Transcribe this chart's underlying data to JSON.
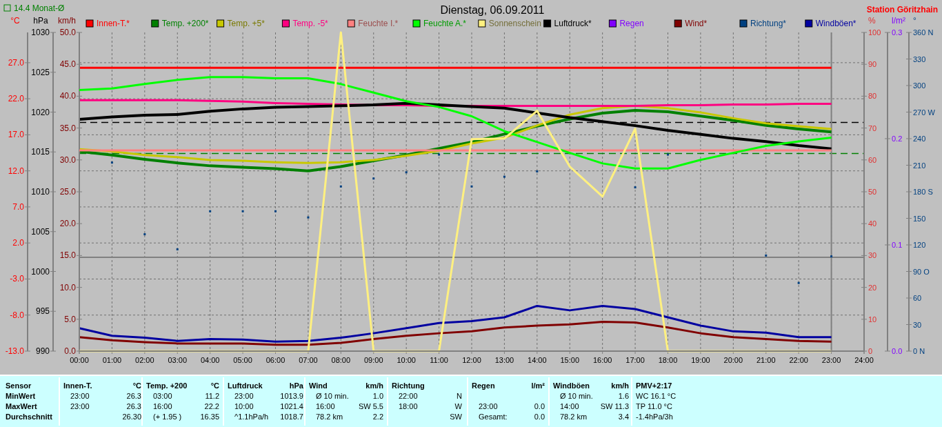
{
  "chart_data": [
    {
      "type": "line",
      "title": "Dienstag, 06.09.2011",
      "annotations": [
        "Station Göritzhain"
      ],
      "ylabel": "°C",
      "y2label": "hPa",
      "y3label": "km/h",
      "x": [
        0,
        1,
        2,
        3,
        4,
        5,
        6,
        7,
        8,
        9,
        10,
        11,
        12,
        13,
        14,
        15,
        16,
        17,
        18,
        19,
        20,
        21,
        22,
        23
      ],
      "xlim": [
        0,
        24
      ],
      "xticks": [
        {
          "value": 0,
          "label": "00:00"
        },
        {
          "value": 1,
          "label": "01:00"
        },
        {
          "value": 2,
          "label": "02:00"
        },
        {
          "value": 3,
          "label": "03:00"
        },
        {
          "value": 4,
          "label": "04:00"
        },
        {
          "value": 5,
          "label": "05:00"
        },
        {
          "value": 6,
          "label": "06:00"
        },
        {
          "value": 7,
          "label": "07:00"
        },
        {
          "value": 8,
          "label": "08:00"
        },
        {
          "value": 9,
          "label": "09:00"
        },
        {
          "value": 10,
          "label": "10:00"
        },
        {
          "value": 11,
          "label": "11:00"
        },
        {
          "value": 12,
          "label": "12:00"
        },
        {
          "value": 13,
          "label": "13:00"
        },
        {
          "value": 14,
          "label": "14:00"
        },
        {
          "value": 15,
          "label": "15:00"
        },
        {
          "value": 16,
          "label": "16:00"
        },
        {
          "value": 17,
          "label": "17:00"
        },
        {
          "value": 18,
          "label": "18:00"
        },
        {
          "value": 19,
          "label": "19:00"
        },
        {
          "value": 20,
          "label": "20:00"
        },
        {
          "value": 21,
          "label": "21:00"
        },
        {
          "value": 22,
          "label": "22:00"
        },
        {
          "value": 23,
          "label": "23:00"
        },
        {
          "value": 24,
          "label": "24:00"
        }
      ],
      "ylim": [
        -13,
        31.2
      ],
      "yticks": [
        {
          "value": -13,
          "label": "-13.0"
        },
        {
          "value": -8,
          "label": "-8.0"
        },
        {
          "value": -3,
          "label": "-3.0"
        },
        {
          "value": 2,
          "label": "2.0"
        },
        {
          "value": 7,
          "label": "7.0"
        },
        {
          "value": 12,
          "label": "12.0"
        },
        {
          "value": 17,
          "label": "17.0"
        },
        {
          "value": 22,
          "label": "22.0"
        },
        {
          "value": 27,
          "label": "27.0"
        }
      ],
      "y2lim": [
        990,
        1030
      ],
      "y2ticks": [
        990,
        995,
        1000,
        1005,
        1010,
        1015,
        1020,
        1025,
        1030
      ],
      "y3lim": [
        0,
        50
      ],
      "y3ticks": [
        {
          "value": 0,
          "label": "0.0"
        },
        {
          "value": 5,
          "label": "5.0"
        },
        {
          "value": 10,
          "label": "10.0"
        },
        {
          "value": 15,
          "label": "15.0"
        },
        {
          "value": 20,
          "label": "20.0"
        },
        {
          "value": 25,
          "label": "25.0"
        },
        {
          "value": 30,
          "label": "30.0"
        },
        {
          "value": 35,
          "label": "35.0"
        },
        {
          "value": 40,
          "label": "40.0"
        },
        {
          "value": 45,
          "label": "45.0"
        },
        {
          "value": 50,
          "label": "50.0"
        }
      ],
      "grid": true,
      "legend": "top",
      "ref_lines": [
        {
          "axis": "y",
          "value": 14.4,
          "label": "14.4 Monat-Ø",
          "color": "#008000",
          "line_style": "dashed"
        },
        {
          "axis": "y2",
          "value": 1018.7,
          "color": "#000000",
          "line_style": "dashed"
        },
        {
          "axis": "y",
          "value": 0,
          "color": "#808080"
        },
        {
          "axis": "x",
          "value": 23,
          "color": "#808080"
        }
      ],
      "series": [
        {
          "name": "Innen-T.*",
          "color": "#ff0000",
          "values": [
            26.3,
            26.3,
            26.3,
            26.3,
            26.3,
            26.3,
            26.3,
            26.3,
            26.3,
            26.3,
            26.3,
            26.3,
            26.3,
            26.3,
            26.3,
            26.3,
            26.3,
            26.3,
            26.3,
            26.3,
            26.3,
            26.3,
            26.3,
            26.3
          ]
        },
        {
          "name": "Temp. +200*",
          "color": "#008000",
          "values": [
            14.7,
            14.2,
            13.6,
            13.1,
            12.7,
            12.5,
            12.3,
            12.0,
            12.6,
            13.4,
            14.2,
            15.1,
            16.0,
            17.1,
            18.2,
            19.2,
            20.0,
            20.4,
            20.2,
            19.6,
            19.0,
            18.3,
            17.8,
            17.4
          ]
        },
        {
          "name": "Temp. +5*",
          "color": "#c8c800",
          "values": [
            15.0,
            14.7,
            14.2,
            13.9,
            13.5,
            13.4,
            13.2,
            13.1,
            13.2,
            13.5,
            14.1,
            14.8,
            15.8,
            16.6,
            18.3,
            19.8,
            20.7,
            21.0,
            20.7,
            20.1,
            19.3,
            18.6,
            18.2,
            17.8
          ]
        },
        {
          "name": "Temp. -5*",
          "color": "#ff0080",
          "values": [
            21.8,
            21.8,
            21.8,
            21.8,
            21.7,
            21.6,
            21.4,
            21.3,
            21.2,
            21.1,
            21.1,
            21.0,
            21.0,
            21.0,
            21.0,
            21.0,
            21.0,
            21.0,
            21.1,
            21.1,
            21.2,
            21.2,
            21.3,
            21.3
          ]
        },
        {
          "name": "Luftdruck*",
          "color": "#000000",
          "axis": "y2",
          "values": [
            1019.1,
            1019.4,
            1019.6,
            1019.7,
            1020.1,
            1020.4,
            1020.6,
            1020.7,
            1020.8,
            1020.9,
            1021.1,
            1020.9,
            1020.7,
            1020.5,
            1019.9,
            1019.3,
            1018.8,
            1018.3,
            1017.7,
            1017.2,
            1016.7,
            1016.3,
            1015.8,
            1015.4
          ]
        },
        {
          "name": "Wind*",
          "color": "#800000",
          "axis": "y3",
          "values": [
            2.2,
            1.7,
            1.4,
            1.2,
            1.2,
            1.2,
            1.0,
            1.0,
            1.3,
            1.9,
            2.4,
            2.8,
            3.1,
            3.7,
            4.0,
            4.2,
            4.6,
            4.5,
            3.7,
            2.8,
            2.2,
            1.9,
            1.6,
            1.5
          ]
        },
        {
          "name": "Windböen*",
          "color": "#0000a0",
          "axis": "y3",
          "values": [
            3.6,
            2.4,
            2.1,
            1.6,
            1.9,
            1.8,
            1.5,
            1.6,
            2.1,
            2.8,
            3.6,
            4.4,
            4.7,
            5.3,
            7.1,
            6.4,
            7.1,
            6.6,
            5.3,
            4.0,
            3.1,
            2.9,
            2.2,
            2.2
          ]
        }
      ]
    },
    {
      "type": "line",
      "ylabel": "%",
      "y2label": "l/m²",
      "y3label": "°",
      "tick_labels": "y",
      "x": [
        0,
        1,
        2,
        3,
        4,
        5,
        6,
        7,
        8,
        9,
        10,
        11,
        12,
        13,
        14,
        15,
        16,
        17,
        18,
        19,
        20,
        21,
        22,
        23
      ],
      "xlim": [
        0,
        24
      ],
      "xticks": [
        {
          "value": 0,
          "label": null
        },
        {
          "value": 24,
          "label": null
        }
      ],
      "ylim": [
        0,
        100
      ],
      "yticks": [
        0,
        10,
        20,
        30,
        40,
        50,
        60,
        70,
        80,
        90,
        100
      ],
      "y2lim": [
        0,
        0.3
      ],
      "y2ticks": [
        {
          "value": 0,
          "label": "0.0"
        },
        0.1,
        0.2,
        0.3
      ],
      "y3lim": [
        0,
        360
      ],
      "y3ticks": [
        {
          "value": 0,
          "label": "0 N"
        },
        30,
        60,
        {
          "value": 90,
          "label": "90 O"
        },
        120,
        150,
        {
          "value": 180,
          "label": "180 S"
        },
        210,
        240,
        {
          "value": 270,
          "label": "270 W"
        },
        300,
        330,
        {
          "value": 360,
          "label": "360 N"
        }
      ],
      "legend": "top",
      "series": [
        {
          "name": "Feuchte I.*",
          "color": "#ff8080",
          "values": [
            63,
            63,
            63,
            63,
            63,
            63,
            63,
            63,
            63,
            63,
            63,
            63,
            63,
            63,
            63,
            63,
            63,
            63,
            63,
            63,
            63,
            63,
            63,
            63
          ]
        },
        {
          "name": "Feuchte A.*",
          "color": "#00ff00",
          "values": [
            81.9,
            82.4,
            83.8,
            85.1,
            86.0,
            86.0,
            85.6,
            85.6,
            83.8,
            81.1,
            78.4,
            76.6,
            73.7,
            69.0,
            65.6,
            62.2,
            58.9,
            57.3,
            57.3,
            60.0,
            62.2,
            64.4,
            65.8,
            67.0
          ]
        },
        {
          "name": "Sonnenschein",
          "color": "#fff080",
          "values": [
            0,
            0,
            0,
            0,
            0,
            0,
            0,
            0,
            100,
            0,
            0,
            0,
            66.5,
            66.7,
            75.4,
            57.9,
            48.5,
            69.8,
            0,
            0,
            0,
            0,
            0,
            0
          ]
        },
        {
          "name": "Regen",
          "color": "#8000ff",
          "axis": "y2",
          "values": [
            null,
            null,
            null,
            null,
            null,
            null,
            null,
            null,
            null,
            null,
            null,
            null,
            null,
            null,
            null,
            null,
            null,
            null,
            null,
            null,
            null,
            null,
            null,
            null
          ]
        },
        {
          "name": "Richtung*",
          "color": "#004080",
          "axis": "y3",
          "type": "scatter",
          "marker": "square",
          "values": [
            null,
            213,
            132,
            115,
            158,
            158,
            158,
            151,
            186,
            195,
            202,
            222,
            186,
            197,
            203,
            null,
            null,
            185,
            222,
            null,
            null,
            108,
            77,
            107
          ]
        }
      ]
    },
    {
      "type": "other",
      "annotations": [
        "Sensor",
        "MinWert",
        "MaxWert",
        "Durchschnitt",
        "Innen-T.",
        "°C",
        "23:00",
        "26.3",
        "23:00",
        "26.3",
        "26.30",
        "Temp. +200",
        "°C",
        "03:00",
        "11.2",
        "16:00",
        "22.2",
        "(+ 1.95 )",
        "16.35",
        "Luftdruck",
        "hPa",
        "23:00",
        "1013.9",
        "10:00",
        "1021.4",
        "^1.1hPa/h",
        "1018.7",
        "Wind",
        "km/h",
        "Ø 10 min.",
        "1.0",
        "16:00",
        "SW 5.5",
        "78.2 km",
        "2.2",
        "Richtung",
        "22:00",
        "N",
        "18:00",
        "W",
        "SW",
        "Regen",
        "l/m²",
        "23:00",
        "0.0",
        "Gesamt:",
        "0.0",
        "Windböen",
        "km/h",
        "Ø 10 min.",
        "1.6",
        "14:00",
        "SW 11.3",
        "78.2 km",
        "3.4",
        "PMV+2:17",
        "WC 16.1 °C",
        "TP 11.0 °C",
        "-1.4hPa/3h"
      ]
    }
  ]
}
